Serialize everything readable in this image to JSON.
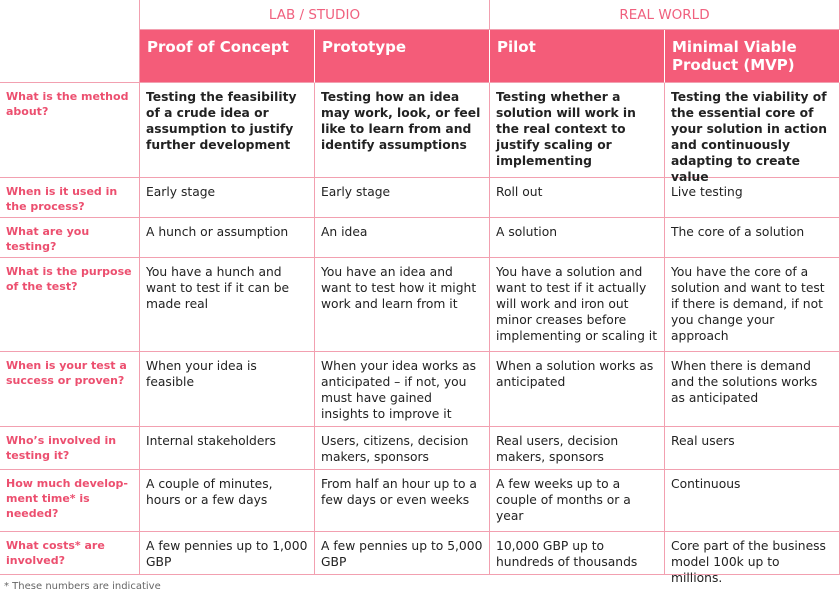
{
  "table": {
    "groups": [
      "LAB / STUDIO",
      "REAL WORLD"
    ],
    "columns": [
      "Proof of Concept",
      "Prototype",
      "Pilot",
      "Minimal Viable Product (MVP)"
    ],
    "rows": [
      [
        "What is the method about?",
        "Testing the feasibility of a crude idea or assumption to justify further development",
        "Testing how an idea may work, look, or feel like to learn from and identify assumptions",
        "Testing whether a solution will work in the real context to justify scaling or implementing",
        "Testing the viability of the essential core of your solution in action and continuously adapting to create value"
      ],
      [
        "When is it used in the process?",
        "Early stage",
        "Early stage",
        "Roll out",
        "Live testing"
      ],
      [
        "What are you testing?",
        "A hunch or assumption",
        "An idea",
        "A solution",
        "The core of a solution"
      ],
      [
        "What is the purpose of the test?",
        "You have a hunch and want to test if it can be made real",
        "You have an idea and want to test how it might work and learn from it",
        "You have a solution and want to test if it actually will work and iron out minor creases before implementing or scaling it",
        "You have the core of a solution and want to test if there is demand, if not you change your approach"
      ],
      [
        "When is your test a success or proven?",
        "When your idea is feasible",
        "When your idea works as anticipated – if not, you must have gained insights to improve it",
        "When a solution works as anticipated",
        "When there is demand and the solutions works as anticipated"
      ],
      [
        "Who’s involved in testing it?",
        "Internal stakeholders",
        "Users, citizens, decision makers, sponsors",
        "Real users, decision makers, sponsors",
        "Real users"
      ],
      [
        "How much develop-ment time* is needed?",
        "A couple of minutes, hours or a few days",
        "From half an hour up to a few days or even weeks",
        "A few weeks up to a couple of months or a year",
        "Continuous"
      ],
      [
        "What costs* are involved?",
        "A few pennies up to 1,000 GBP",
        "A few pennies up to 5,000 GBP",
        "10,000 GBP up to hundreds of thousands",
        "Core part of the business model 100k up to millions."
      ]
    ]
  },
  "footnote": "* These numbers are indicative"
}
